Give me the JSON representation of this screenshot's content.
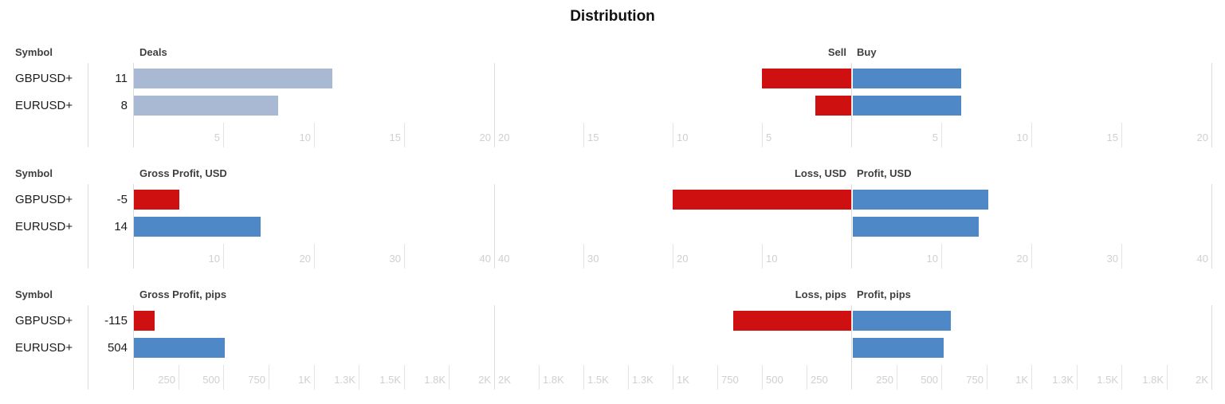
{
  "title": "Distribution",
  "colors": {
    "deals_bar": "#a9b8d3",
    "positive_bar": "#4e88c7",
    "negative_bar": "#cf1010",
    "grid_line": "#e4e4e4",
    "axis_line": "#dcdcdc",
    "tick_text": "#d0d0d0",
    "header_text": "#3f3f3f",
    "label_text": "#1c1c1c"
  },
  "chart_data": [
    {
      "id": "deals",
      "type": "bar",
      "symbol_header": "Symbol",
      "left": {
        "header": "Deals",
        "max": 20,
        "ticks": [
          "5",
          "10",
          "15",
          "20"
        ],
        "tick_values": [
          5,
          10,
          15,
          20
        ],
        "rows": [
          {
            "symbol": "GBPUSD+",
            "display": "11",
            "value": 11
          },
          {
            "symbol": "EURUSD+",
            "display": "8",
            "value": 8
          }
        ]
      },
      "right": {
        "neg_header": "Sell",
        "pos_header": "Buy",
        "max": 20,
        "neg_ticks": [
          "20",
          "15",
          "10",
          "5"
        ],
        "pos_ticks": [
          "5",
          "10",
          "15",
          "20"
        ],
        "rows": [
          {
            "symbol": "GBPUSD+",
            "neg": 5,
            "pos": 6
          },
          {
            "symbol": "EURUSD+",
            "neg": 2,
            "pos": 6
          }
        ]
      }
    },
    {
      "id": "gross-profit-usd",
      "type": "bar",
      "symbol_header": "Symbol",
      "left": {
        "header": "Gross Profit, USD",
        "max": 40,
        "ticks": [
          "10",
          "20",
          "30",
          "40"
        ],
        "tick_values": [
          10,
          20,
          30,
          40
        ],
        "rows": [
          {
            "symbol": "GBPUSD+",
            "display": "-5",
            "value": -5
          },
          {
            "symbol": "EURUSD+",
            "display": "14",
            "value": 14
          }
        ]
      },
      "right": {
        "neg_header": "Loss, USD",
        "pos_header": "Profit, USD",
        "max": 40,
        "neg_ticks": [
          "40",
          "30",
          "20",
          "10"
        ],
        "pos_ticks": [
          "10",
          "20",
          "30",
          "40"
        ],
        "rows": [
          {
            "symbol": "GBPUSD+",
            "neg": 20,
            "pos": 15
          },
          {
            "symbol": "EURUSD+",
            "neg": 0,
            "pos": 14
          }
        ]
      }
    },
    {
      "id": "gross-profit-pips",
      "type": "bar",
      "symbol_header": "Symbol",
      "left": {
        "header": "Gross Profit, pips",
        "max": 2000,
        "ticks": [
          "250",
          "500",
          "750",
          "1K",
          "1.3K",
          "1.5K",
          "1.8K",
          "2K"
        ],
        "tick_values": [
          250,
          500,
          750,
          1000,
          1250,
          1500,
          1750,
          2000
        ],
        "rows": [
          {
            "symbol": "GBPUSD+",
            "display": "-115",
            "value": -115
          },
          {
            "symbol": "EURUSD+",
            "display": "504",
            "value": 504
          }
        ]
      },
      "right": {
        "neg_header": "Loss, pips",
        "pos_header": "Profit, pips",
        "max": 2000,
        "neg_ticks": [
          "2K",
          "1.8K",
          "1.5K",
          "1.3K",
          "1K",
          "750",
          "500",
          "250"
        ],
        "pos_ticks": [
          "250",
          "500",
          "750",
          "1K",
          "1.3K",
          "1.5K",
          "1.8K",
          "2K"
        ],
        "rows": [
          {
            "symbol": "GBPUSD+",
            "neg": 660,
            "pos": 545
          },
          {
            "symbol": "EURUSD+",
            "neg": 0,
            "pos": 504
          }
        ]
      }
    }
  ]
}
